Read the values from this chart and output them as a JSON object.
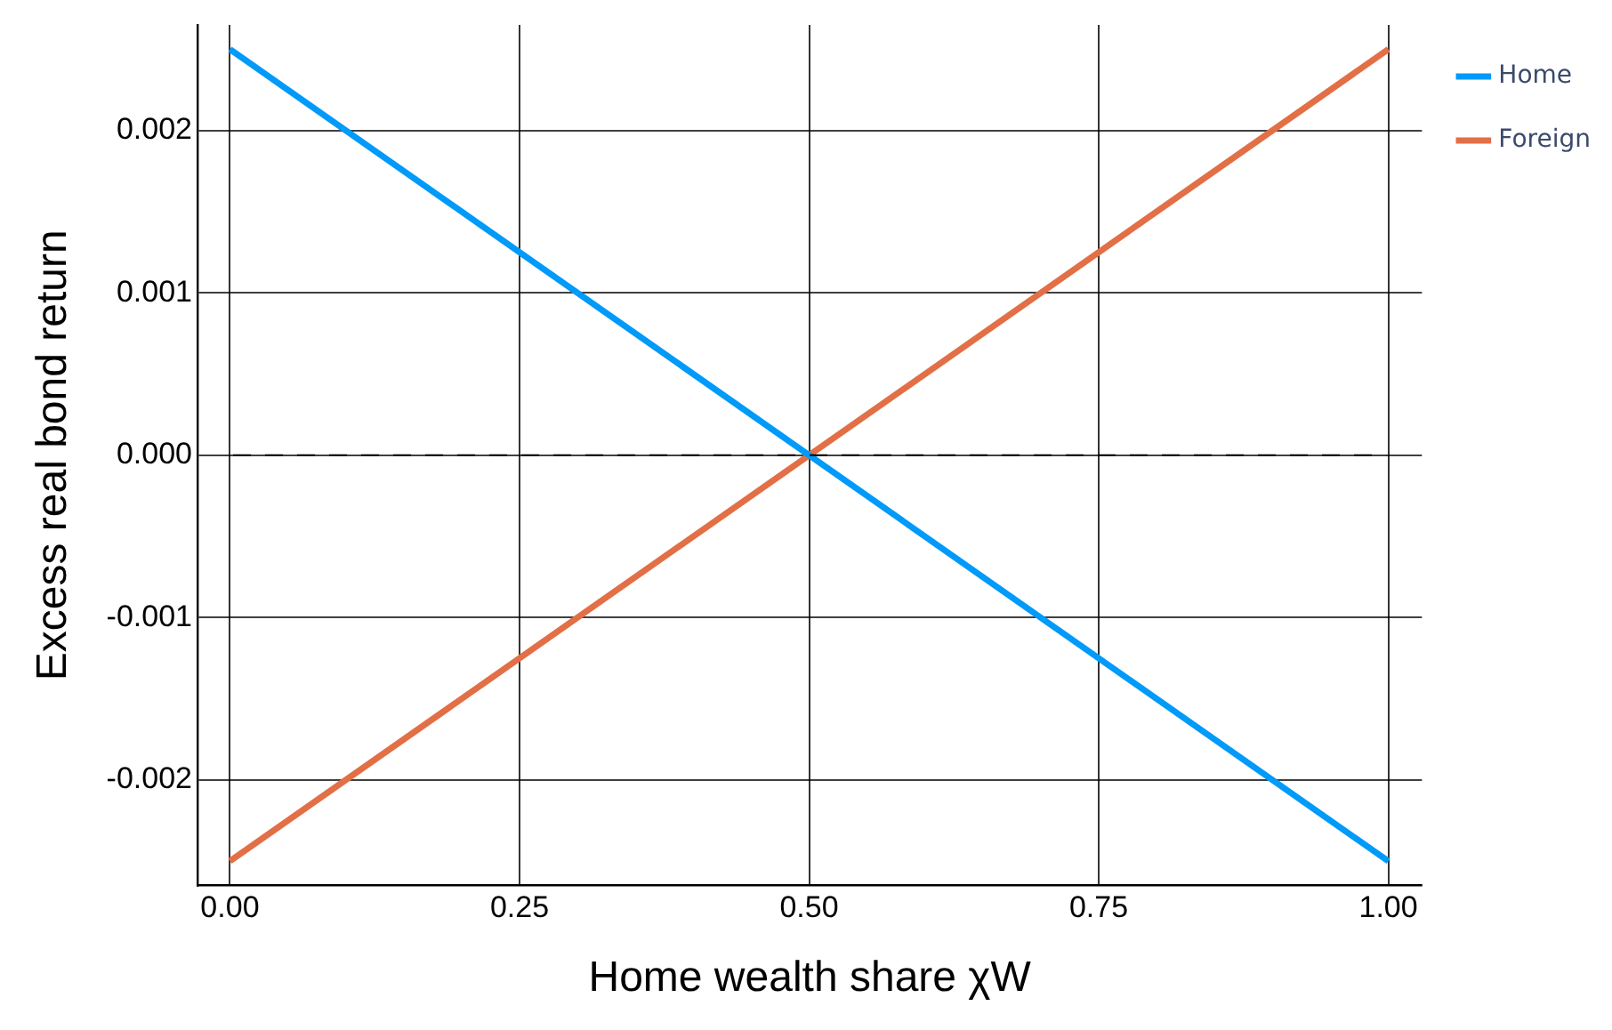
{
  "chart_data": {
    "type": "line",
    "xlabel": "Home wealth share χW",
    "ylabel": "Excess real bond return",
    "x": [
      0,
      1
    ],
    "series": [
      {
        "name": "Home",
        "color": "#009af9",
        "values": [
          0.0025,
          -0.0025
        ]
      },
      {
        "name": "Foreign",
        "color": "#e26f46",
        "values": [
          -0.0025,
          0.0025
        ]
      }
    ],
    "xlim": [
      -0.028,
      1.029
    ],
    "ylim": [
      -0.00265,
      0.00265
    ],
    "xticks": [
      {
        "value": 0,
        "label": "0.00"
      },
      {
        "value": 0.25,
        "label": "0.25"
      },
      {
        "value": 0.5,
        "label": "0.50"
      },
      {
        "value": 0.75,
        "label": "0.75"
      },
      {
        "value": 1,
        "label": "1.00"
      }
    ],
    "yticks": [
      {
        "value": -0.002,
        "label": "-0.002"
      },
      {
        "value": -0.001,
        "label": "-0.001"
      },
      {
        "value": 0,
        "label": "0.000"
      },
      {
        "value": 0.001,
        "label": "0.001"
      },
      {
        "value": 0.002,
        "label": "0.002"
      }
    ],
    "ref_lines": [
      {
        "axis": "y",
        "value": 0,
        "color": "#000000",
        "line_style": "dashed"
      }
    ],
    "grid": true,
    "legend": "top right",
    "marker": "none",
    "line_style": "solid"
  }
}
